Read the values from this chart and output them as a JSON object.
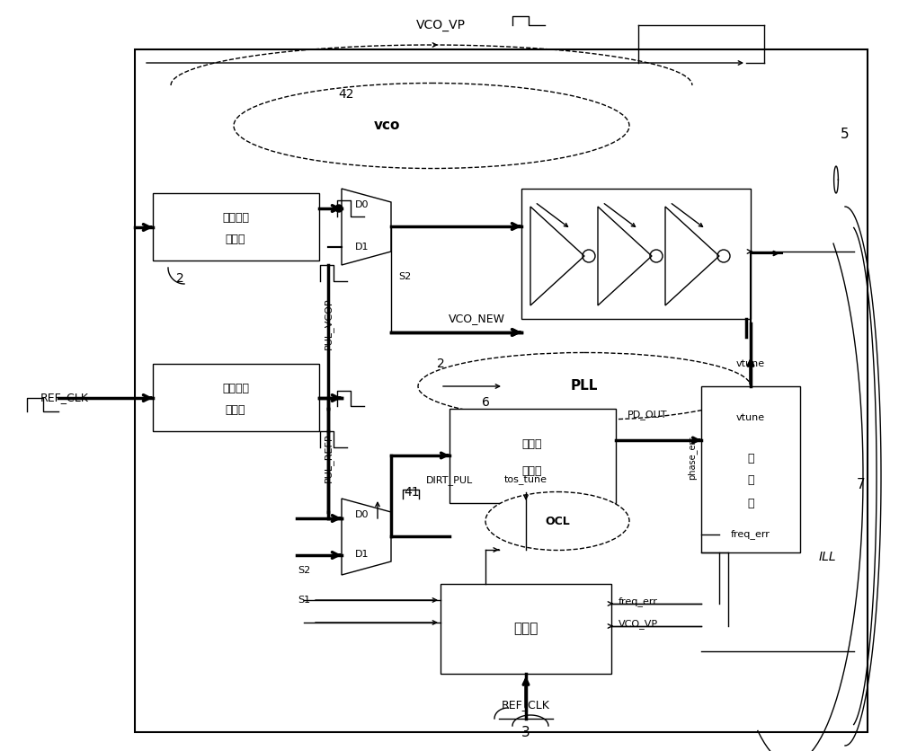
{
  "bg_color": "#ffffff",
  "figsize": [
    10.0,
    8.36
  ],
  "dpi": 100,
  "labels": {
    "vco_vp_top": "VCO_VP",
    "vco": "vco",
    "num42": "42",
    "num5": "5",
    "num2_top": "2",
    "second_gen_l1": "第二脉冲",
    "second_gen_l2": "生成器",
    "d0_top": "D0",
    "d1_top": "D1",
    "s2_top": "S2",
    "pul_vcop": "PUL_VCOP",
    "ref_clk_left": "REF_CLK",
    "first_gen_l1": "第一脉冲",
    "first_gen_l2": "生成器",
    "pul_refp": "PUL_REFP",
    "pll": "PLL",
    "num2_mid": "2",
    "num6": "6",
    "zero_pd_l1": "零失配",
    "zero_pd_l2": "鉴相器",
    "pd_out": "PD_OUT",
    "ocl": "OCL",
    "tos_tune": "tos_tune",
    "num41": "41",
    "dirt_pul": "DIRT_PUL",
    "d0_bot": "D0",
    "d1_bot": "D1",
    "s2_bot": "S2",
    "s1": "S1",
    "state_machine": "状态机",
    "ref_clk_bot": "REF_CLK",
    "num3": "3",
    "freq_err_bot": "freq_err",
    "vco_vp_bot": "VCO_VP",
    "vtune_label": "vtune",
    "filter_l1": "滤",
    "filter_l2": "波",
    "filter_l3": "器",
    "vtune_top": "vtune",
    "phase_err": "phase_err",
    "freq_err_right": "freq_err",
    "num7": "7",
    "ill": "ILL",
    "vco_new": "VCO_NEW"
  }
}
